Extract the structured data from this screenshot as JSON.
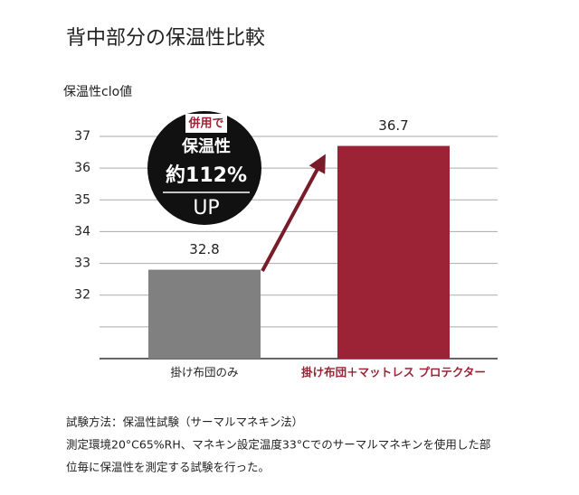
{
  "chart_data": {
    "type": "bar",
    "title": "背中部分の保温性比較",
    "y_axis_label": "保温性clo値",
    "categories": [
      "掛け布団のみ",
      "掛け布団＋マットレス プロテクター"
    ],
    "values": [
      32.8,
      36.7
    ],
    "colors": [
      "#808080",
      "#9b2335"
    ],
    "category_label_colors": [
      "#222222",
      "#9b2335"
    ],
    "ylim": [
      30,
      37
    ],
    "yticks": [
      {
        "value": 31,
        "label": null
      },
      32,
      33,
      34,
      35,
      36,
      37
    ],
    "grid": true,
    "badge": {
      "tag": "併用で",
      "line1": "保温性",
      "line2": "約112%",
      "line3": "UP"
    },
    "notes": [
      "試験方法：保温性試験（サーマルマネキン法）",
      "測定環境20°C65%RH、マネキン設定温度33°Cでのサーマルマネキンを使用した部",
      "位毎に保温性を測定する試験を行った。"
    ]
  }
}
